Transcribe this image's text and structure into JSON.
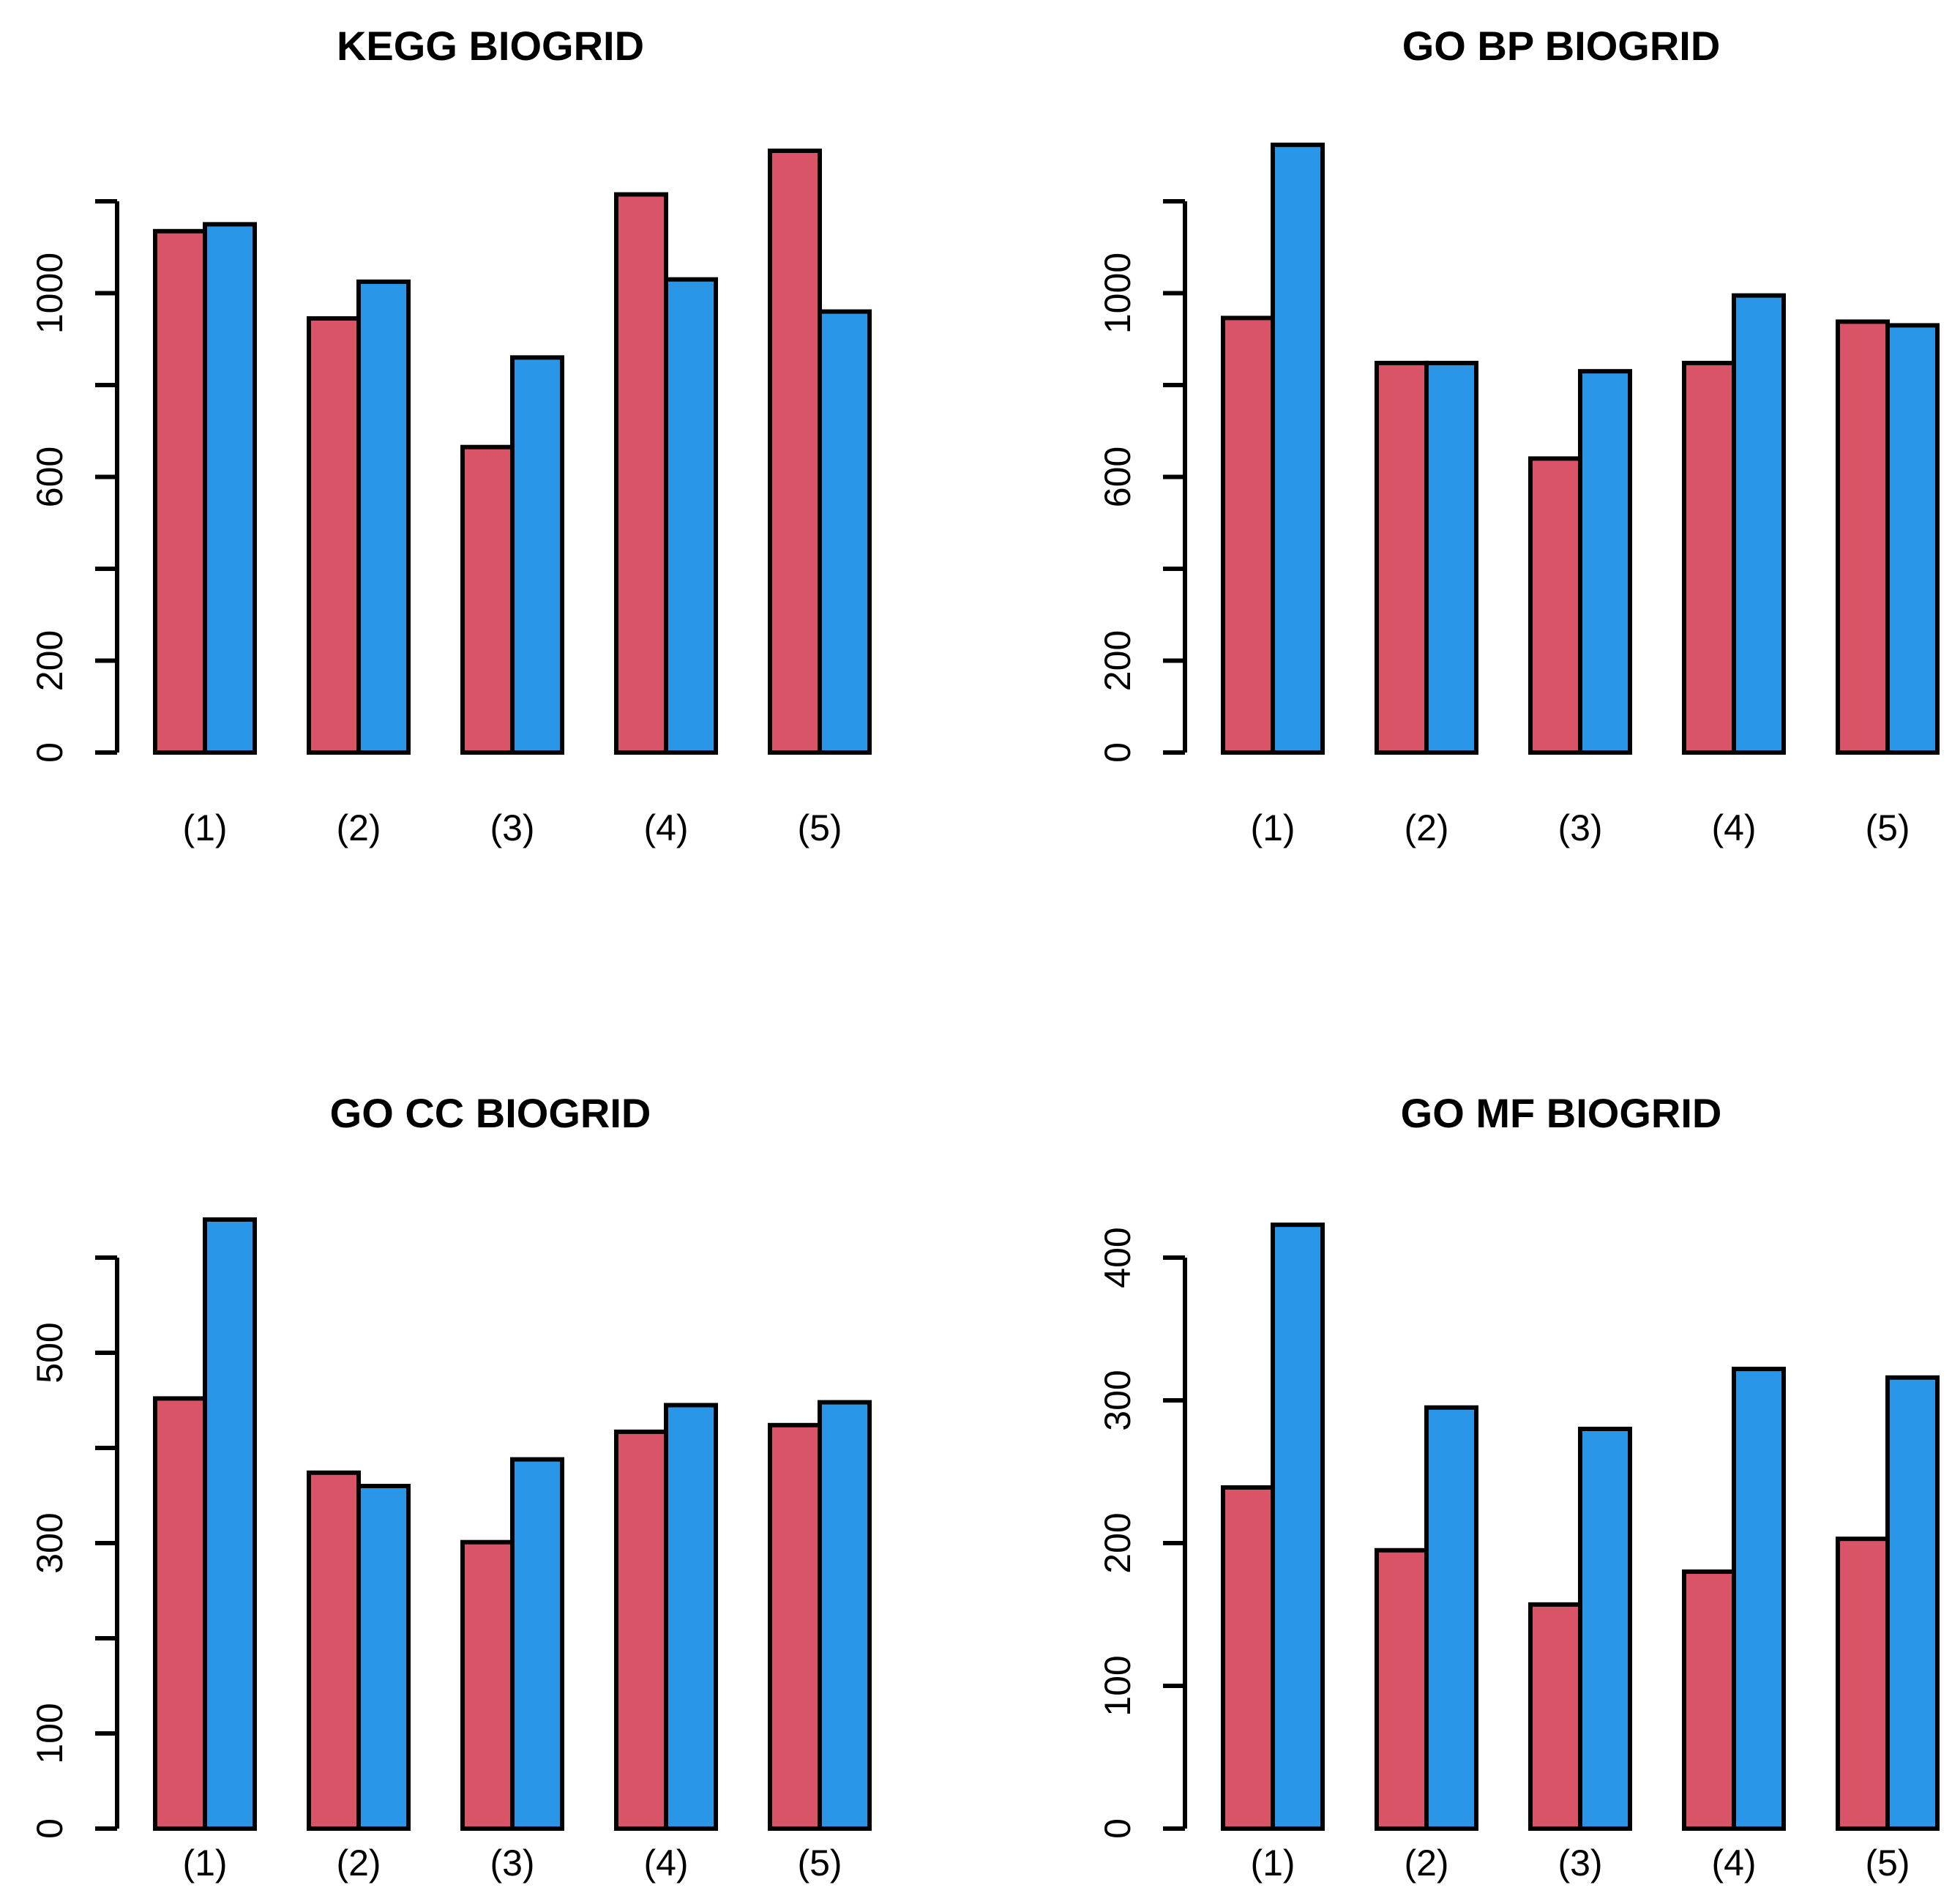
{
  "page": {
    "background": "#ffffff"
  },
  "colors": {
    "series_red": "#DA5468",
    "series_blue": "#2996E8",
    "bar_border": "#000000",
    "axis": "#000000"
  },
  "chart_data": [
    {
      "type": "bar",
      "title": "KEGG BIOGRID",
      "xlabel": "",
      "ylabel": "",
      "categories": [
        "(1)",
        "(2)",
        "(3)",
        "(4)",
        "(5)"
      ],
      "series": [
        {
          "name": "red",
          "color": "#DA5468",
          "values": [
            1135,
            945,
            665,
            1215,
            1310
          ]
        },
        {
          "name": "blue",
          "color": "#2996E8",
          "values": [
            1150,
            1025,
            860,
            1030,
            960
          ]
        }
      ],
      "ylim": [
        0,
        1200
      ],
      "tick_step": 200,
      "labeled_ticks": [
        0,
        200,
        600,
        1000
      ],
      "grid": "off",
      "legend": "none"
    },
    {
      "type": "bar",
      "title": "GO BP BIOGRID",
      "xlabel": "",
      "ylabel": "",
      "categories": [
        "(1)",
        "(2)",
        "(3)",
        "(4)",
        "(5)"
      ],
      "series": [
        {
          "name": "red",
          "color": "#DA5468",
          "values": [
            946,
            848,
            640,
            848,
            938
          ]
        },
        {
          "name": "blue",
          "color": "#2996E8",
          "values": [
            1323,
            848,
            830,
            995,
            930
          ]
        }
      ],
      "ylim": [
        0,
        1200
      ],
      "tick_step": 200,
      "labeled_ticks": [
        0,
        200,
        600,
        1000
      ],
      "grid": "off",
      "legend": "none"
    },
    {
      "type": "bar",
      "title": "GO CC BIOGRID",
      "xlabel": "",
      "ylabel": "",
      "categories": [
        "(1)",
        "(2)",
        "(3)",
        "(4)",
        "(5)"
      ],
      "series": [
        {
          "name": "red",
          "color": "#DA5468",
          "values": [
            452,
            374,
            301,
            417,
            424
          ]
        },
        {
          "name": "blue",
          "color": "#2996E8",
          "values": [
            640,
            360,
            388,
            445,
            448
          ]
        }
      ],
      "ylim": [
        0,
        600
      ],
      "tick_step": 100,
      "labeled_ticks": [
        0,
        100,
        300,
        500
      ],
      "grid": "off",
      "legend": "none"
    },
    {
      "type": "bar",
      "title": "GO MF BIOGRID",
      "xlabel": "",
      "ylabel": "",
      "categories": [
        "(1)",
        "(2)",
        "(3)",
        "(4)",
        "(5)"
      ],
      "series": [
        {
          "name": "red",
          "color": "#DA5468",
          "values": [
            239,
            195,
            157,
            180,
            203
          ]
        },
        {
          "name": "blue",
          "color": "#2996E8",
          "values": [
            423,
            295,
            280,
            322,
            316
          ]
        }
      ],
      "ylim": [
        0,
        400
      ],
      "tick_step": 100,
      "labeled_ticks": [
        0,
        100,
        200,
        300,
        400
      ],
      "grid": "off",
      "legend": "none"
    }
  ]
}
